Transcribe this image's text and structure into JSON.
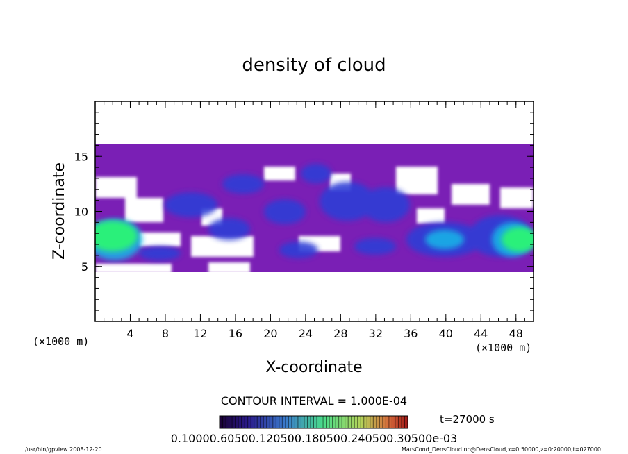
{
  "chart_data": {
    "type": "heatmap",
    "title": "density of cloud",
    "xlabel": "X-coordinate",
    "ylabel": "Z-coordinate",
    "x_unit_left": "(×1000 m)",
    "x_unit_right": "(×1000 m)",
    "xlim": [
      0,
      50
    ],
    "ylim": [
      0,
      20
    ],
    "x_ticks": [
      4,
      8,
      12,
      16,
      20,
      24,
      28,
      32,
      36,
      40,
      44,
      48
    ],
    "y_ticks": [
      5,
      10,
      15
    ],
    "cloud_layer_z": [
      4.5,
      16
    ],
    "high_density_regions": [
      {
        "x": [
          0,
          6
        ],
        "z": [
          5.8,
          9.5
        ],
        "level": "high"
      },
      {
        "x": [
          45,
          50
        ],
        "z": [
          6.0,
          9.5
        ],
        "level": "high"
      }
    ],
    "contour_interval": "CONTOUR INTERVAL = 1.000E-04",
    "time_label": "t=27000 s",
    "colorbar_labels": "0.10000.60500.120500.180500.240500.30500e-03",
    "colors": {
      "low": "#7a1fb5",
      "mid": "#2e3cd6",
      "high": "#2bf07a",
      "edge": "#19b8e8"
    }
  },
  "footer": {
    "left": "/usr/bin/gpview   2008-12-20",
    "right": "MarsCond_DensCloud.nc@DensCloud,x=0:50000,z=0:20000,t=027000"
  }
}
